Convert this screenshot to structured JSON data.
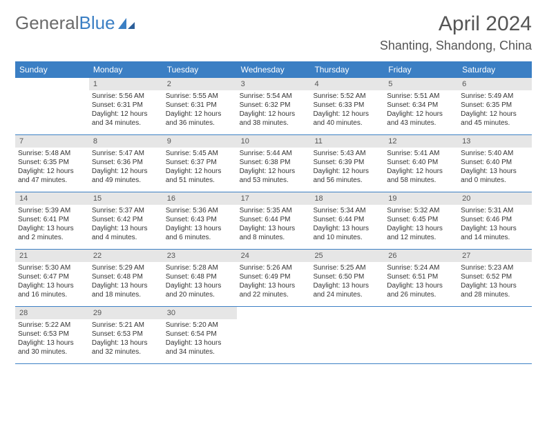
{
  "logo": {
    "text1": "General",
    "text2": "Blue"
  },
  "header": {
    "month_title": "April 2024",
    "location": "Shanting, Shandong, China"
  },
  "colors": {
    "accent": "#3b7fc4",
    "header_text": "#ffffff",
    "daynum_bg": "#e6e6e6",
    "text": "#333333",
    "title": "#555555"
  },
  "weekdays": [
    "Sunday",
    "Monday",
    "Tuesday",
    "Wednesday",
    "Thursday",
    "Friday",
    "Saturday"
  ],
  "weeks": [
    [
      {
        "empty": true
      },
      {
        "n": "1",
        "sunrise": "Sunrise: 5:56 AM",
        "sunset": "Sunset: 6:31 PM",
        "day1": "Daylight: 12 hours",
        "day2": "and 34 minutes."
      },
      {
        "n": "2",
        "sunrise": "Sunrise: 5:55 AM",
        "sunset": "Sunset: 6:31 PM",
        "day1": "Daylight: 12 hours",
        "day2": "and 36 minutes."
      },
      {
        "n": "3",
        "sunrise": "Sunrise: 5:54 AM",
        "sunset": "Sunset: 6:32 PM",
        "day1": "Daylight: 12 hours",
        "day2": "and 38 minutes."
      },
      {
        "n": "4",
        "sunrise": "Sunrise: 5:52 AM",
        "sunset": "Sunset: 6:33 PM",
        "day1": "Daylight: 12 hours",
        "day2": "and 40 minutes."
      },
      {
        "n": "5",
        "sunrise": "Sunrise: 5:51 AM",
        "sunset": "Sunset: 6:34 PM",
        "day1": "Daylight: 12 hours",
        "day2": "and 43 minutes."
      },
      {
        "n": "6",
        "sunrise": "Sunrise: 5:49 AM",
        "sunset": "Sunset: 6:35 PM",
        "day1": "Daylight: 12 hours",
        "day2": "and 45 minutes."
      }
    ],
    [
      {
        "n": "7",
        "sunrise": "Sunrise: 5:48 AM",
        "sunset": "Sunset: 6:35 PM",
        "day1": "Daylight: 12 hours",
        "day2": "and 47 minutes."
      },
      {
        "n": "8",
        "sunrise": "Sunrise: 5:47 AM",
        "sunset": "Sunset: 6:36 PM",
        "day1": "Daylight: 12 hours",
        "day2": "and 49 minutes."
      },
      {
        "n": "9",
        "sunrise": "Sunrise: 5:45 AM",
        "sunset": "Sunset: 6:37 PM",
        "day1": "Daylight: 12 hours",
        "day2": "and 51 minutes."
      },
      {
        "n": "10",
        "sunrise": "Sunrise: 5:44 AM",
        "sunset": "Sunset: 6:38 PM",
        "day1": "Daylight: 12 hours",
        "day2": "and 53 minutes."
      },
      {
        "n": "11",
        "sunrise": "Sunrise: 5:43 AM",
        "sunset": "Sunset: 6:39 PM",
        "day1": "Daylight: 12 hours",
        "day2": "and 56 minutes."
      },
      {
        "n": "12",
        "sunrise": "Sunrise: 5:41 AM",
        "sunset": "Sunset: 6:40 PM",
        "day1": "Daylight: 12 hours",
        "day2": "and 58 minutes."
      },
      {
        "n": "13",
        "sunrise": "Sunrise: 5:40 AM",
        "sunset": "Sunset: 6:40 PM",
        "day1": "Daylight: 13 hours",
        "day2": "and 0 minutes."
      }
    ],
    [
      {
        "n": "14",
        "sunrise": "Sunrise: 5:39 AM",
        "sunset": "Sunset: 6:41 PM",
        "day1": "Daylight: 13 hours",
        "day2": "and 2 minutes."
      },
      {
        "n": "15",
        "sunrise": "Sunrise: 5:37 AM",
        "sunset": "Sunset: 6:42 PM",
        "day1": "Daylight: 13 hours",
        "day2": "and 4 minutes."
      },
      {
        "n": "16",
        "sunrise": "Sunrise: 5:36 AM",
        "sunset": "Sunset: 6:43 PM",
        "day1": "Daylight: 13 hours",
        "day2": "and 6 minutes."
      },
      {
        "n": "17",
        "sunrise": "Sunrise: 5:35 AM",
        "sunset": "Sunset: 6:44 PM",
        "day1": "Daylight: 13 hours",
        "day2": "and 8 minutes."
      },
      {
        "n": "18",
        "sunrise": "Sunrise: 5:34 AM",
        "sunset": "Sunset: 6:44 PM",
        "day1": "Daylight: 13 hours",
        "day2": "and 10 minutes."
      },
      {
        "n": "19",
        "sunrise": "Sunrise: 5:32 AM",
        "sunset": "Sunset: 6:45 PM",
        "day1": "Daylight: 13 hours",
        "day2": "and 12 minutes."
      },
      {
        "n": "20",
        "sunrise": "Sunrise: 5:31 AM",
        "sunset": "Sunset: 6:46 PM",
        "day1": "Daylight: 13 hours",
        "day2": "and 14 minutes."
      }
    ],
    [
      {
        "n": "21",
        "sunrise": "Sunrise: 5:30 AM",
        "sunset": "Sunset: 6:47 PM",
        "day1": "Daylight: 13 hours",
        "day2": "and 16 minutes."
      },
      {
        "n": "22",
        "sunrise": "Sunrise: 5:29 AM",
        "sunset": "Sunset: 6:48 PM",
        "day1": "Daylight: 13 hours",
        "day2": "and 18 minutes."
      },
      {
        "n": "23",
        "sunrise": "Sunrise: 5:28 AM",
        "sunset": "Sunset: 6:48 PM",
        "day1": "Daylight: 13 hours",
        "day2": "and 20 minutes."
      },
      {
        "n": "24",
        "sunrise": "Sunrise: 5:26 AM",
        "sunset": "Sunset: 6:49 PM",
        "day1": "Daylight: 13 hours",
        "day2": "and 22 minutes."
      },
      {
        "n": "25",
        "sunrise": "Sunrise: 5:25 AM",
        "sunset": "Sunset: 6:50 PM",
        "day1": "Daylight: 13 hours",
        "day2": "and 24 minutes."
      },
      {
        "n": "26",
        "sunrise": "Sunrise: 5:24 AM",
        "sunset": "Sunset: 6:51 PM",
        "day1": "Daylight: 13 hours",
        "day2": "and 26 minutes."
      },
      {
        "n": "27",
        "sunrise": "Sunrise: 5:23 AM",
        "sunset": "Sunset: 6:52 PM",
        "day1": "Daylight: 13 hours",
        "day2": "and 28 minutes."
      }
    ],
    [
      {
        "n": "28",
        "sunrise": "Sunrise: 5:22 AM",
        "sunset": "Sunset: 6:53 PM",
        "day1": "Daylight: 13 hours",
        "day2": "and 30 minutes."
      },
      {
        "n": "29",
        "sunrise": "Sunrise: 5:21 AM",
        "sunset": "Sunset: 6:53 PM",
        "day1": "Daylight: 13 hours",
        "day2": "and 32 minutes."
      },
      {
        "n": "30",
        "sunrise": "Sunrise: 5:20 AM",
        "sunset": "Sunset: 6:54 PM",
        "day1": "Daylight: 13 hours",
        "day2": "and 34 minutes."
      },
      {
        "empty": true
      },
      {
        "empty": true
      },
      {
        "empty": true
      },
      {
        "empty": true
      }
    ]
  ]
}
